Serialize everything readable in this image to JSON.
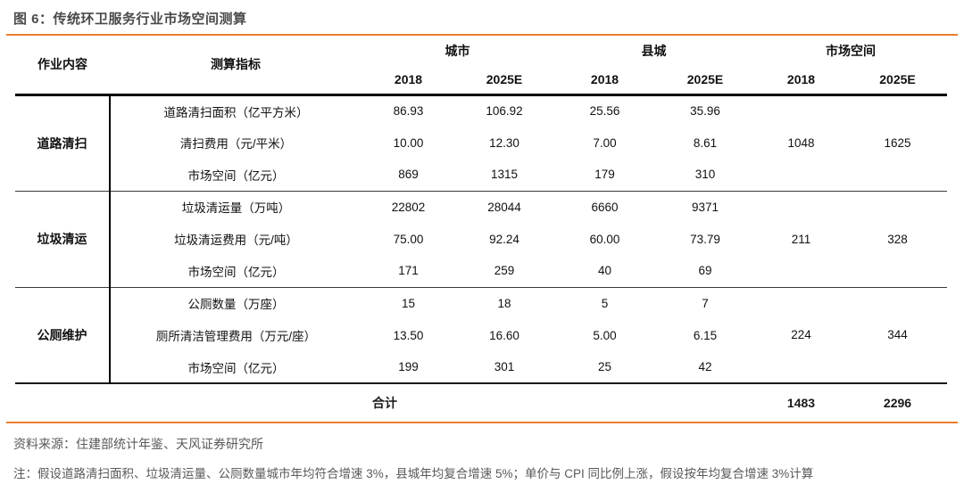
{
  "title": "图 6：传统环卫服务行业市场空间测算",
  "colors": {
    "accent_orange": "#E87E2E",
    "title_gray": "#4A4A4A",
    "footer_gray": "#595959",
    "table_line_black": "#000000"
  },
  "table": {
    "headers": {
      "job": "作业内容",
      "indicator": "测算指标",
      "groups": [
        {
          "label": "城市",
          "years": [
            "2018",
            "2025E"
          ]
        },
        {
          "label": "县城",
          "years": [
            "2018",
            "2025E"
          ]
        },
        {
          "label": "市场空间",
          "years": [
            "2018",
            "2025E"
          ]
        }
      ]
    },
    "blocks": [
      {
        "job": "道路清扫",
        "rows": [
          {
            "indicator": "道路清扫面积（亿平方米）",
            "values": [
              "86.93",
              "106.92",
              "25.56",
              "35.96"
            ]
          },
          {
            "indicator": "清扫费用（元/平米）",
            "values": [
              "10.00",
              "12.30",
              "7.00",
              "8.61"
            ]
          },
          {
            "indicator": "市场空间（亿元）",
            "values": [
              "869",
              "1315",
              "179",
              "310"
            ]
          }
        ],
        "market": [
          "1048",
          "1625"
        ]
      },
      {
        "job": "垃圾清运",
        "rows": [
          {
            "indicator": "垃圾清运量（万吨）",
            "values": [
              "22802",
              "28044",
              "6660",
              "9371"
            ]
          },
          {
            "indicator": "垃圾清运费用（元/吨）",
            "values": [
              "75.00",
              "92.24",
              "60.00",
              "73.79"
            ]
          },
          {
            "indicator": "市场空间（亿元）",
            "values": [
              "171",
              "259",
              "40",
              "69"
            ]
          }
        ],
        "market": [
          "211",
          "328"
        ]
      },
      {
        "job": "公厕维护",
        "rows": [
          {
            "indicator": "公厕数量（万座）",
            "values": [
              "15",
              "18",
              "5",
              "7"
            ]
          },
          {
            "indicator": "厕所清洁管理费用（万元/座）",
            "values": [
              "13.50",
              "16.60",
              "5.00",
              "6.15"
            ]
          },
          {
            "indicator": "市场空间（亿元）",
            "values": [
              "199",
              "301",
              "25",
              "42"
            ]
          }
        ],
        "market": [
          "224",
          "344"
        ]
      }
    ],
    "total": {
      "label": "合计",
      "values": [
        "1483",
        "2296"
      ]
    }
  },
  "footer": {
    "source": "资料来源：住建部统计年鉴、天风证券研究所",
    "note": "注：假设道路清扫面积、垃圾清运量、公厕数量城市年均符合增速 3%，县城年均复合增速 5%；单价与 CPI 同比例上涨，假设按年均复合增速 3%计算"
  }
}
